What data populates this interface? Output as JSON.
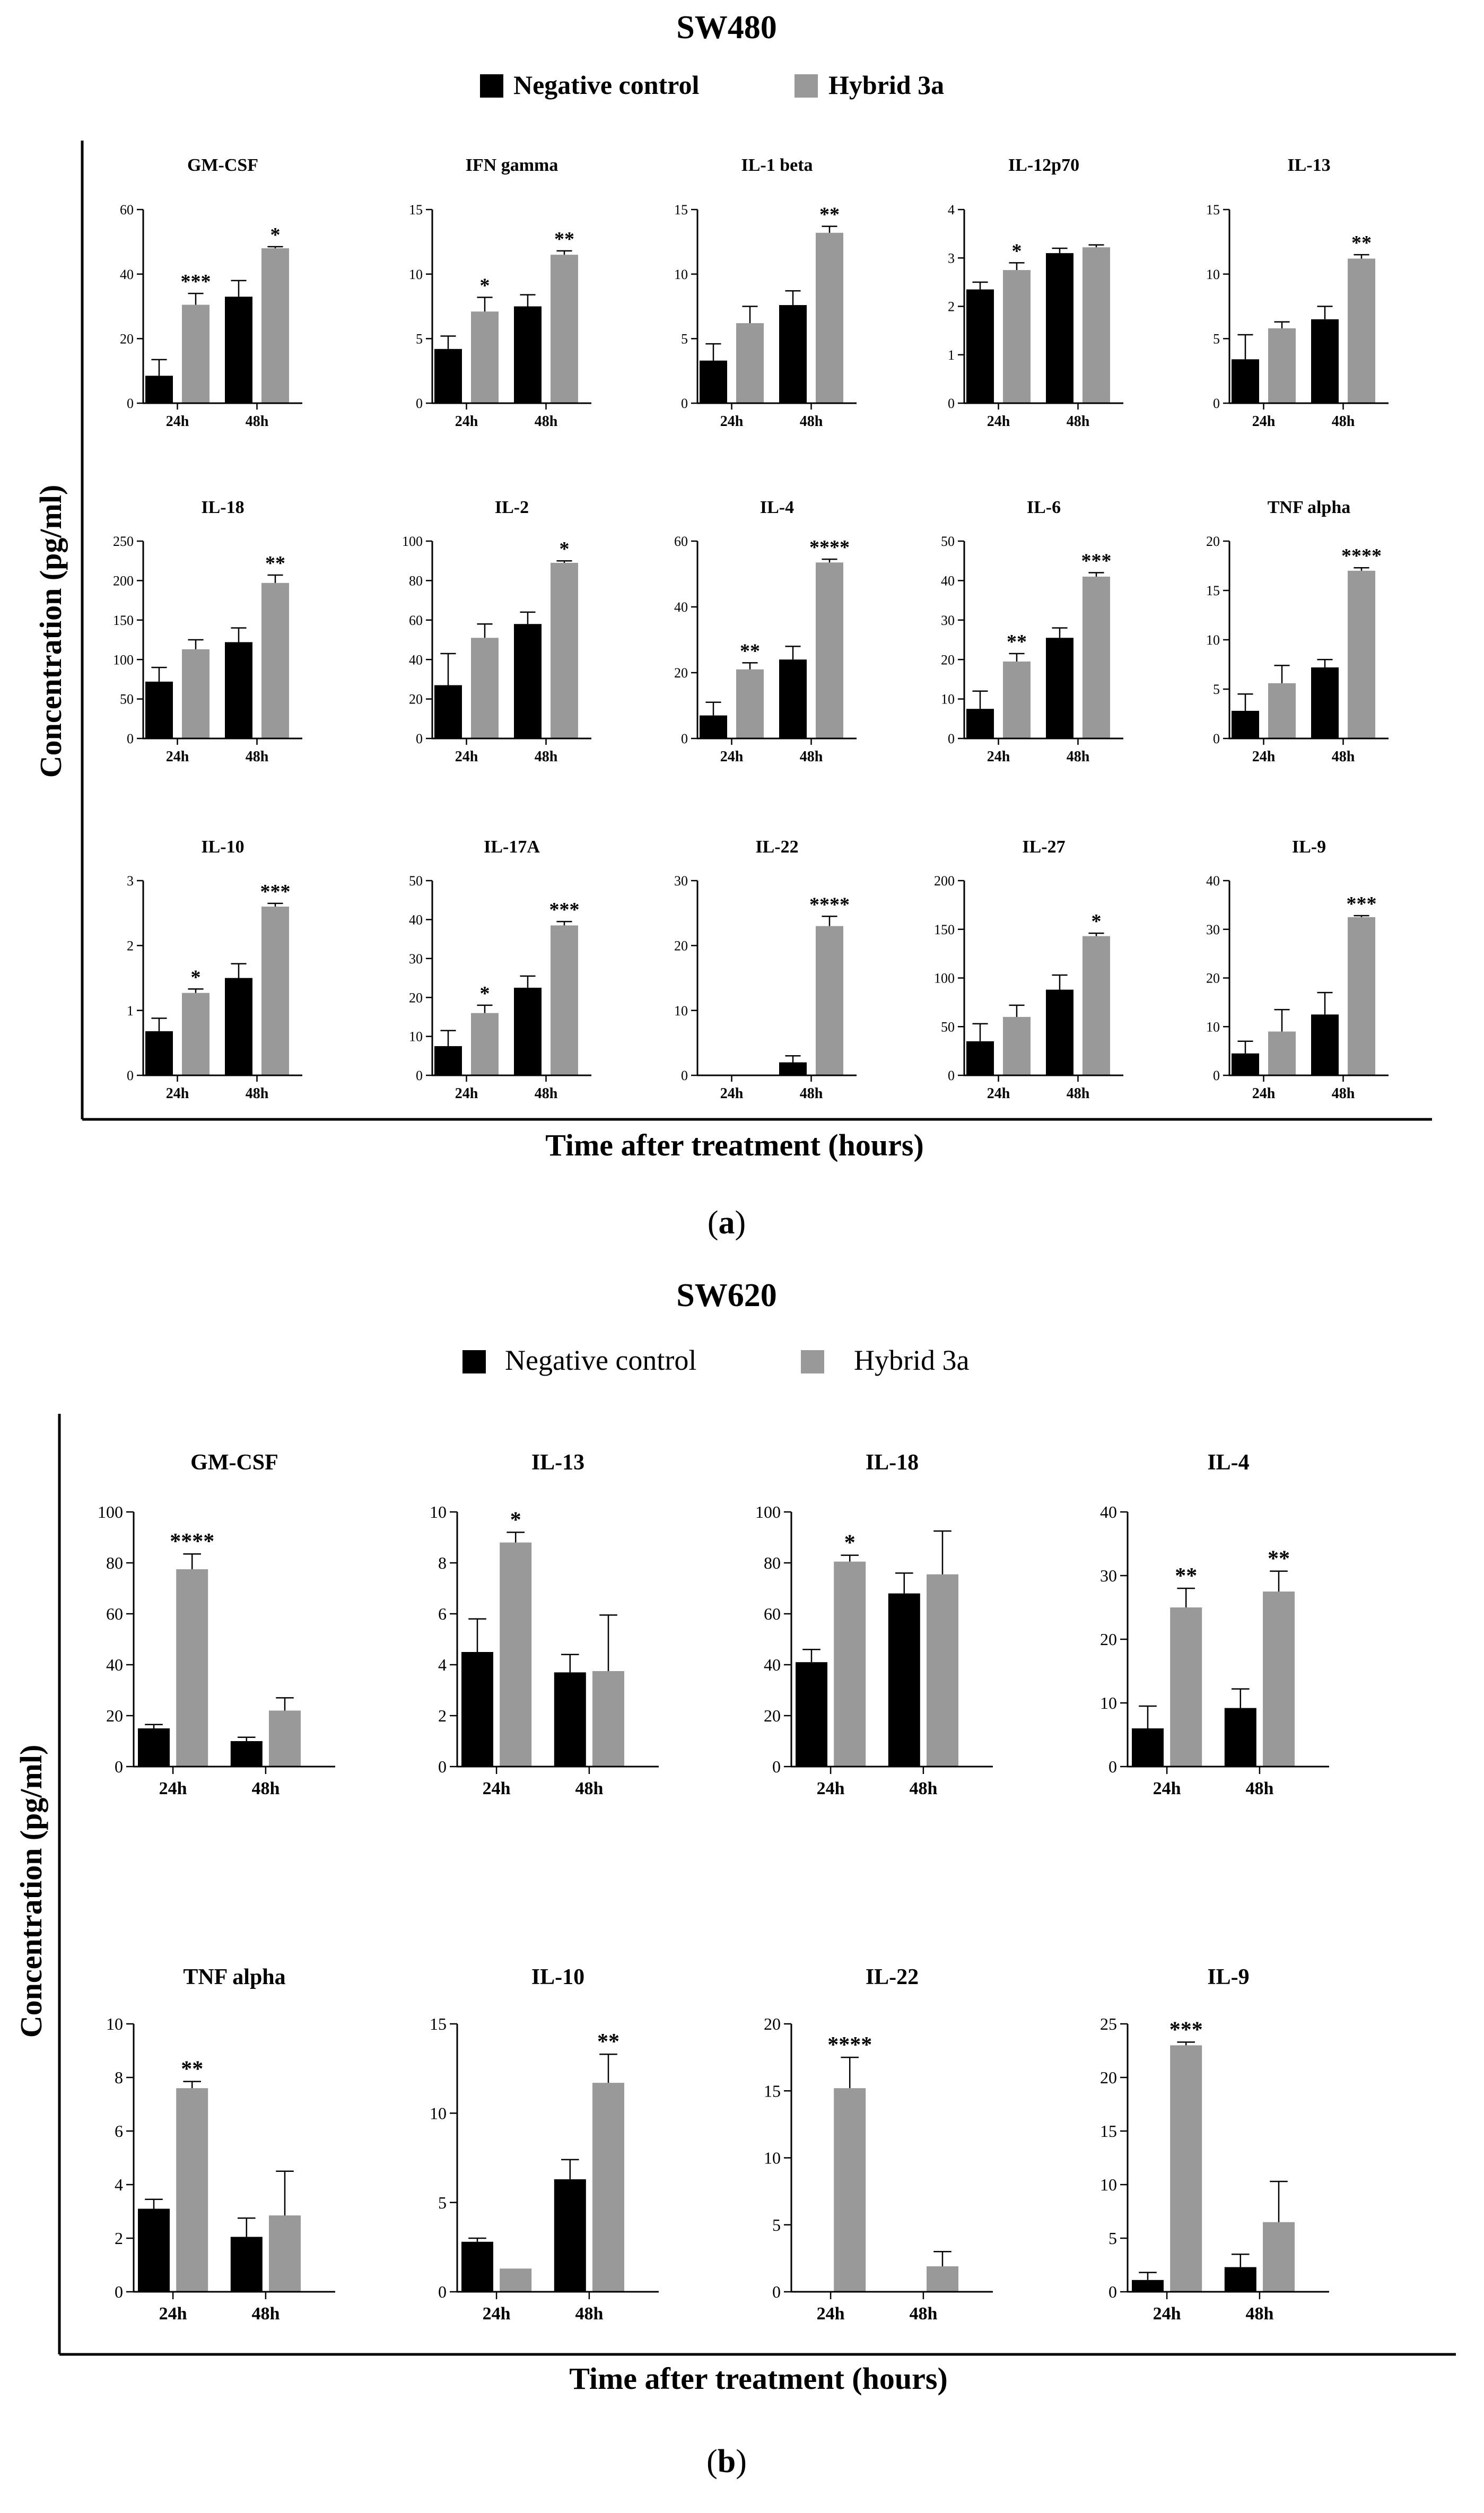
{
  "figure": {
    "panel_a": {
      "title": "SW480",
      "caption": "(a)",
      "caption_letter": "a",
      "ylabel": "Concentration (pg/ml)",
      "xlabel": "Time after treatment (hours)",
      "legend": [
        "Negative control",
        "Hybrid 3a"
      ]
    },
    "panel_b": {
      "title": "SW620",
      "caption": "(b)",
      "caption_letter": "b",
      "ylabel": "Concentration (pg/ml)",
      "xlabel": "Time after treatment (hours)",
      "legend": [
        "Negative control",
        "Hybrid 3a"
      ]
    }
  },
  "colors": {
    "negative_control": "#000000",
    "hybrid_3a": "#999999",
    "axis": "#000000"
  },
  "chart_data": [
    {
      "type": "bar",
      "panel": "a",
      "title": "GM-CSF",
      "categories": [
        "24h",
        "48h"
      ],
      "ylim": [
        0,
        60
      ],
      "ticks": [
        0,
        20,
        40,
        60
      ],
      "series": [
        {
          "name": "Negative control",
          "values": [
            8.5,
            33
          ],
          "errors": [
            5,
            5
          ]
        },
        {
          "name": "Hybrid 3a",
          "values": [
            30.5,
            48
          ],
          "errors": [
            3.5,
            0.5
          ]
        }
      ],
      "significance": [
        "***",
        "*"
      ]
    },
    {
      "type": "bar",
      "panel": "a",
      "title": "IFN gamma",
      "categories": [
        "24h",
        "48h"
      ],
      "ylim": [
        0,
        15
      ],
      "ticks": [
        0,
        5,
        10,
        15
      ],
      "series": [
        {
          "name": "Negative control",
          "values": [
            4.2,
            7.5
          ],
          "errors": [
            1.0,
            0.9
          ]
        },
        {
          "name": "Hybrid 3a",
          "values": [
            7.1,
            11.5
          ],
          "errors": [
            1.1,
            0.3
          ]
        }
      ],
      "significance": [
        "*",
        "**"
      ]
    },
    {
      "type": "bar",
      "panel": "a",
      "title": "IL-1 beta",
      "categories": [
        "24h",
        "48h"
      ],
      "ylim": [
        0,
        15
      ],
      "ticks": [
        0,
        5,
        10,
        15
      ],
      "series": [
        {
          "name": "Negative control",
          "values": [
            3.3,
            7.6
          ],
          "errors": [
            1.3,
            1.1
          ]
        },
        {
          "name": "Hybrid 3a",
          "values": [
            6.2,
            13.2
          ],
          "errors": [
            1.3,
            0.5
          ]
        }
      ],
      "significance": [
        "",
        "**"
      ]
    },
    {
      "type": "bar",
      "panel": "a",
      "title": "IL-12p70",
      "categories": [
        "24h",
        "48h"
      ],
      "ylim": [
        0,
        4
      ],
      "ticks": [
        0,
        1,
        2,
        3,
        4
      ],
      "series": [
        {
          "name": "Negative control",
          "values": [
            2.35,
            3.1
          ],
          "errors": [
            0.15,
            0.1
          ]
        },
        {
          "name": "Hybrid 3a",
          "values": [
            2.75,
            3.22
          ],
          "errors": [
            0.15,
            0.05
          ]
        }
      ],
      "significance": [
        "*",
        ""
      ]
    },
    {
      "type": "bar",
      "panel": "a",
      "title": "IL-13",
      "categories": [
        "24h",
        "48h"
      ],
      "ylim": [
        0,
        15
      ],
      "ticks": [
        0,
        5,
        10,
        15
      ],
      "series": [
        {
          "name": "Negative control",
          "values": [
            3.4,
            6.5
          ],
          "errors": [
            1.9,
            1.0
          ]
        },
        {
          "name": "Hybrid 3a",
          "values": [
            5.8,
            11.2
          ],
          "errors": [
            0.5,
            0.3
          ]
        }
      ],
      "significance": [
        "",
        "**"
      ]
    },
    {
      "type": "bar",
      "panel": "a",
      "title": "IL-18",
      "categories": [
        "24h",
        "48h"
      ],
      "ylim": [
        0,
        250
      ],
      "ticks": [
        0,
        50,
        100,
        150,
        200,
        250
      ],
      "series": [
        {
          "name": "Negative control",
          "values": [
            72,
            122
          ],
          "errors": [
            18,
            18
          ]
        },
        {
          "name": "Hybrid 3a",
          "values": [
            113,
            197
          ],
          "errors": [
            12,
            10
          ]
        }
      ],
      "significance": [
        "",
        "**"
      ]
    },
    {
      "type": "bar",
      "panel": "a",
      "title": "IL-2",
      "categories": [
        "24h",
        "48h"
      ],
      "ylim": [
        0,
        100
      ],
      "ticks": [
        0,
        20,
        40,
        60,
        80,
        100
      ],
      "series": [
        {
          "name": "Negative control",
          "values": [
            27,
            58
          ],
          "errors": [
            16,
            6
          ]
        },
        {
          "name": "Hybrid 3a",
          "values": [
            51,
            89
          ],
          "errors": [
            7,
            1
          ]
        }
      ],
      "significance": [
        "",
        "*"
      ]
    },
    {
      "type": "bar",
      "panel": "a",
      "title": "IL-4",
      "categories": [
        "24h",
        "48h"
      ],
      "ylim": [
        0,
        60
      ],
      "ticks": [
        0,
        20,
        40,
        60
      ],
      "series": [
        {
          "name": "Negative control",
          "values": [
            7,
            24
          ],
          "errors": [
            4,
            4
          ]
        },
        {
          "name": "Hybrid 3a",
          "values": [
            21,
            53.5
          ],
          "errors": [
            2,
            1
          ]
        }
      ],
      "significance": [
        "**",
        "****"
      ]
    },
    {
      "type": "bar",
      "panel": "a",
      "title": "IL-6",
      "categories": [
        "24h",
        "48h"
      ],
      "ylim": [
        0,
        50
      ],
      "ticks": [
        0,
        10,
        20,
        30,
        40,
        50
      ],
      "series": [
        {
          "name": "Negative control",
          "values": [
            7.5,
            25.5
          ],
          "errors": [
            4.5,
            2.5
          ]
        },
        {
          "name": "Hybrid 3a",
          "values": [
            19.5,
            41
          ],
          "errors": [
            2,
            1
          ]
        }
      ],
      "significance": [
        "**",
        "***"
      ]
    },
    {
      "type": "bar",
      "panel": "a",
      "title": "TNF alpha",
      "categories": [
        "24h",
        "48h"
      ],
      "ylim": [
        0,
        20
      ],
      "ticks": [
        0,
        5,
        10,
        15,
        20
      ],
      "series": [
        {
          "name": "Negative control",
          "values": [
            2.8,
            7.2
          ],
          "errors": [
            1.7,
            0.8
          ]
        },
        {
          "name": "Hybrid 3a",
          "values": [
            5.6,
            17
          ],
          "errors": [
            1.8,
            0.3
          ]
        }
      ],
      "significance": [
        "",
        "****"
      ]
    },
    {
      "type": "bar",
      "panel": "a",
      "title": "IL-10",
      "categories": [
        "24h",
        "48h"
      ],
      "ylim": [
        0,
        3
      ],
      "ticks": [
        0,
        1,
        2,
        3
      ],
      "series": [
        {
          "name": "Negative control",
          "values": [
            0.68,
            1.5
          ],
          "errors": [
            0.2,
            0.22
          ]
        },
        {
          "name": "Hybrid 3a",
          "values": [
            1.27,
            2.6
          ],
          "errors": [
            0.06,
            0.05
          ]
        }
      ],
      "significance": [
        "*",
        "***"
      ]
    },
    {
      "type": "bar",
      "panel": "a",
      "title": "IL-17A",
      "categories": [
        "24h",
        "48h"
      ],
      "ylim": [
        0,
        50
      ],
      "ticks": [
        0,
        10,
        20,
        30,
        40,
        50
      ],
      "series": [
        {
          "name": "Negative control",
          "values": [
            7.5,
            22.5
          ],
          "errors": [
            4,
            3
          ]
        },
        {
          "name": "Hybrid 3a",
          "values": [
            16,
            38.5
          ],
          "errors": [
            2,
            1
          ]
        }
      ],
      "significance": [
        "*",
        "***"
      ]
    },
    {
      "type": "bar",
      "panel": "a",
      "title": "IL-22",
      "categories": [
        "24h",
        "48h"
      ],
      "ylim": [
        0,
        30
      ],
      "ticks": [
        0,
        10,
        20,
        30
      ],
      "series": [
        {
          "name": "Negative control",
          "values": [
            0,
            2
          ],
          "errors": [
            0,
            1
          ]
        },
        {
          "name": "Hybrid 3a",
          "values": [
            0,
            23
          ],
          "errors": [
            0,
            1.5
          ]
        }
      ],
      "significance": [
        "",
        "****"
      ]
    },
    {
      "type": "bar",
      "panel": "a",
      "title": "IL-27",
      "categories": [
        "24h",
        "48h"
      ],
      "ylim": [
        0,
        200
      ],
      "ticks": [
        0,
        50,
        100,
        150,
        200
      ],
      "series": [
        {
          "name": "Negative control",
          "values": [
            35,
            88
          ],
          "errors": [
            18,
            15
          ]
        },
        {
          "name": "Hybrid 3a",
          "values": [
            60,
            143
          ],
          "errors": [
            12,
            3
          ]
        }
      ],
      "significance": [
        "",
        "*"
      ]
    },
    {
      "type": "bar",
      "panel": "a",
      "title": "IL-9",
      "categories": [
        "24h",
        "48h"
      ],
      "ylim": [
        0,
        40
      ],
      "ticks": [
        0,
        10,
        20,
        30,
        40
      ],
      "series": [
        {
          "name": "Negative control",
          "values": [
            4.5,
            12.5
          ],
          "errors": [
            2.5,
            4.5
          ]
        },
        {
          "name": "Hybrid 3a",
          "values": [
            9,
            32.5
          ],
          "errors": [
            4.5,
            0.3
          ]
        }
      ],
      "significance": [
        "",
        "***"
      ]
    },
    {
      "type": "bar",
      "panel": "b",
      "title": "GM-CSF",
      "categories": [
        "24h",
        "48h"
      ],
      "ylim": [
        0,
        100
      ],
      "ticks": [
        0,
        20,
        40,
        60,
        80,
        100
      ],
      "series": [
        {
          "name": "Negative control",
          "values": [
            15,
            10
          ],
          "errors": [
            1.5,
            1.5
          ]
        },
        {
          "name": "Hybrid 3a",
          "values": [
            77.5,
            22
          ],
          "errors": [
            6,
            5
          ]
        }
      ],
      "significance": [
        "****",
        ""
      ]
    },
    {
      "type": "bar",
      "panel": "b",
      "title": "IL-13",
      "categories": [
        "24h",
        "48h"
      ],
      "ylim": [
        0,
        10
      ],
      "ticks": [
        0,
        2,
        4,
        6,
        8,
        10
      ],
      "series": [
        {
          "name": "Negative control",
          "values": [
            4.5,
            3.7
          ],
          "errors": [
            1.3,
            0.7
          ]
        },
        {
          "name": "Hybrid 3a",
          "values": [
            8.8,
            3.75
          ],
          "errors": [
            0.4,
            2.2
          ]
        }
      ],
      "significance": [
        "*",
        ""
      ]
    },
    {
      "type": "bar",
      "panel": "b",
      "title": "IL-18",
      "categories": [
        "24h",
        "48h"
      ],
      "ylim": [
        0,
        100
      ],
      "ticks": [
        0,
        20,
        40,
        60,
        80,
        100
      ],
      "series": [
        {
          "name": "Negative control",
          "values": [
            41,
            68
          ],
          "errors": [
            5,
            8
          ]
        },
        {
          "name": "Hybrid 3a",
          "values": [
            80.5,
            75.5
          ],
          "errors": [
            2.5,
            17
          ]
        }
      ],
      "significance": [
        "*",
        ""
      ]
    },
    {
      "type": "bar",
      "panel": "b",
      "title": "IL-4",
      "categories": [
        "24h",
        "48h"
      ],
      "ylim": [
        0,
        40
      ],
      "ticks": [
        0,
        10,
        20,
        30,
        40
      ],
      "series": [
        {
          "name": "Negative control",
          "values": [
            6,
            9.2
          ],
          "errors": [
            3.5,
            3
          ]
        },
        {
          "name": "Hybrid 3a",
          "values": [
            25,
            27.5
          ],
          "errors": [
            3,
            3.2
          ]
        }
      ],
      "significance": [
        "**",
        "**"
      ]
    },
    {
      "type": "bar",
      "panel": "b",
      "title": "TNF alpha",
      "categories": [
        "24h",
        "48h"
      ],
      "ylim": [
        0,
        10
      ],
      "ticks": [
        0,
        2,
        4,
        6,
        8,
        10
      ],
      "series": [
        {
          "name": "Negative control",
          "values": [
            3.1,
            2.05
          ],
          "errors": [
            0.35,
            0.7
          ]
        },
        {
          "name": "Hybrid 3a",
          "values": [
            7.6,
            2.85
          ],
          "errors": [
            0.25,
            1.65
          ]
        }
      ],
      "significance": [
        "**",
        ""
      ]
    },
    {
      "type": "bar",
      "panel": "b",
      "title": "IL-10",
      "categories": [
        "24h",
        "48h"
      ],
      "ylim": [
        0,
        15
      ],
      "ticks": [
        0,
        5,
        10,
        15
      ],
      "series": [
        {
          "name": "Negative control",
          "values": [
            2.8,
            6.3
          ],
          "errors": [
            0.2,
            1.1
          ]
        },
        {
          "name": "Hybrid 3a",
          "values": [
            1.3,
            11.7
          ],
          "errors": [
            0,
            1.6
          ]
        }
      ],
      "significance": [
        "",
        "**"
      ]
    },
    {
      "type": "bar",
      "panel": "b",
      "title": "IL-22",
      "categories": [
        "24h",
        "48h"
      ],
      "ylim": [
        0,
        20
      ],
      "ticks": [
        0,
        5,
        10,
        15,
        20
      ],
      "series": [
        {
          "name": "Negative control",
          "values": [
            0,
            0
          ],
          "errors": [
            0,
            0
          ]
        },
        {
          "name": "Hybrid 3a",
          "values": [
            15.2,
            1.9
          ],
          "errors": [
            2.3,
            1.1
          ]
        }
      ],
      "significance": [
        "****",
        ""
      ]
    },
    {
      "type": "bar",
      "panel": "b",
      "title": "IL-9",
      "categories": [
        "24h",
        "48h"
      ],
      "ylim": [
        0,
        25
      ],
      "ticks": [
        0,
        5,
        10,
        15,
        20,
        25
      ],
      "series": [
        {
          "name": "Negative control",
          "values": [
            1.1,
            2.3
          ],
          "errors": [
            0.7,
            1.2
          ]
        },
        {
          "name": "Hybrid 3a",
          "values": [
            23,
            6.5
          ],
          "errors": [
            0.3,
            3.8
          ]
        }
      ],
      "significance": [
        "***",
        ""
      ]
    }
  ]
}
